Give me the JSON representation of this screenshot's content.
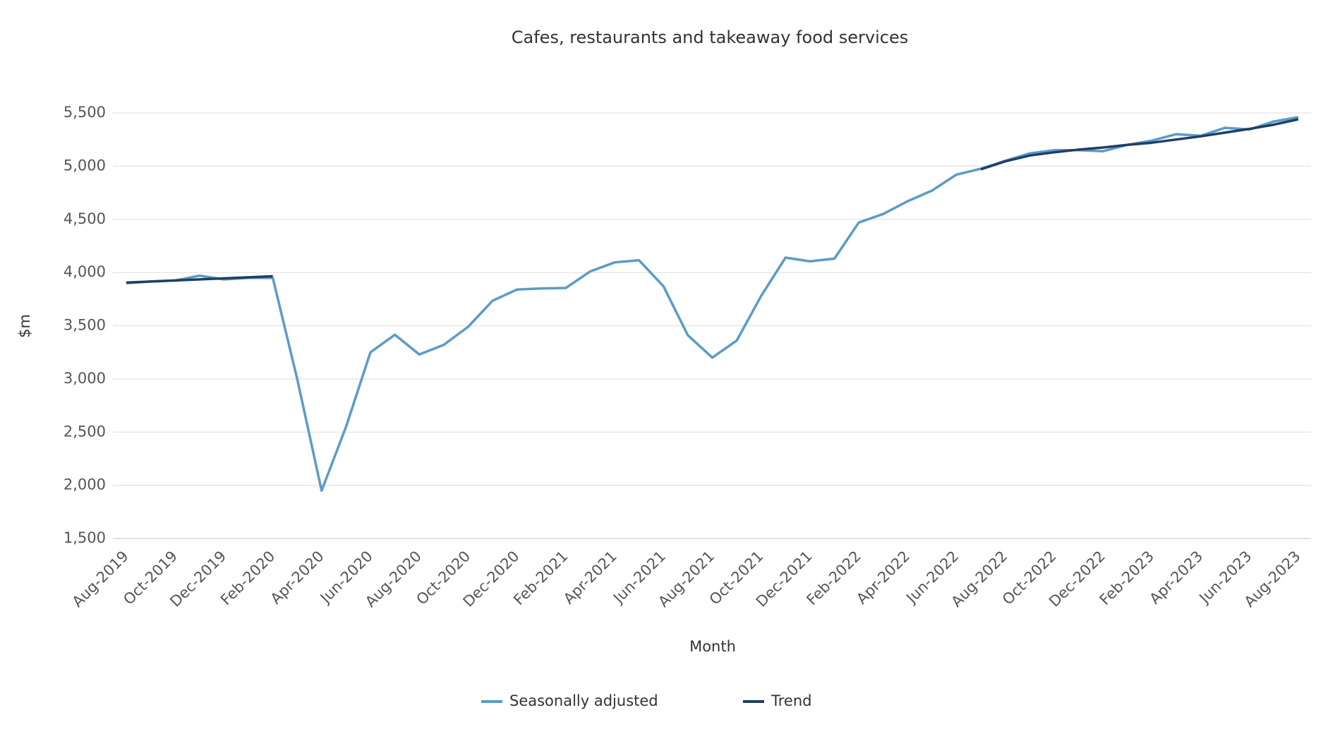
{
  "chart_data": {
    "type": "line",
    "title": "Cafes, restaurants and takeaway food services",
    "xlabel": "Month",
    "ylabel": "$m",
    "categories": [
      "Aug-2019",
      null,
      "Oct-2019",
      null,
      "Dec-2019",
      null,
      "Feb-2020",
      null,
      "Apr-2020",
      null,
      "Jun-2020",
      null,
      "Aug-2020",
      null,
      "Oct-2020",
      null,
      "Dec-2020",
      null,
      "Feb-2021",
      null,
      "Apr-2021",
      null,
      "Jun-2021",
      null,
      "Aug-2021",
      null,
      "Oct-2021",
      null,
      "Dec-2021",
      null,
      "Feb-2022",
      null,
      "Apr-2022",
      null,
      "Jun-2022",
      null,
      "Aug-2022",
      null,
      "Oct-2022",
      null,
      "Dec-2022",
      null,
      "Feb-2023",
      null,
      "Apr-2023",
      null,
      "Jun-2023",
      null,
      "Aug-2023"
    ],
    "series": [
      {
        "name": "Seasonally adjusted",
        "color": "#5b9bc8",
        "values": [
          3900,
          3915,
          3925,
          3970,
          3935,
          3950,
          3950,
          3000,
          1950,
          2550,
          3250,
          3415,
          3230,
          3320,
          3490,
          3735,
          3840,
          3850,
          3855,
          4010,
          4095,
          4115,
          3870,
          3410,
          3200,
          3360,
          3780,
          4140,
          4105,
          4130,
          4470,
          4550,
          4670,
          4770,
          4920,
          4975,
          5050,
          5120,
          5150,
          5150,
          5140,
          5200,
          5240,
          5300,
          5285,
          5360,
          5345,
          5420,
          5460
        ]
      },
      {
        "name": "Trend",
        "color": "#1f3f63",
        "values": [
          3905,
          3915,
          3925,
          3935,
          3945,
          3955,
          3965,
          null,
          null,
          null,
          null,
          null,
          null,
          null,
          null,
          null,
          null,
          null,
          null,
          null,
          null,
          null,
          null,
          null,
          null,
          null,
          null,
          null,
          null,
          null,
          null,
          null,
          null,
          null,
          null,
          4970,
          5045,
          5100,
          5130,
          5155,
          5175,
          5200,
          5220,
          5250,
          5280,
          5315,
          5350,
          5390,
          5440
        ]
      }
    ],
    "ylim": [
      1500,
      5500
    ],
    "yticks": [
      {
        "value": 1500,
        "label": "1,500"
      },
      {
        "value": 2000,
        "label": "2,000"
      },
      {
        "value": 2500,
        "label": "2,500"
      },
      {
        "value": 3000,
        "label": "3,000"
      },
      {
        "value": 3500,
        "label": "3,500"
      },
      {
        "value": 4000,
        "label": "4,000"
      },
      {
        "value": 4500,
        "label": "4,500"
      },
      {
        "value": 5000,
        "label": "5,000"
      },
      {
        "value": 5500,
        "label": "5,500"
      }
    ],
    "grid": true,
    "legend": "bottom"
  }
}
